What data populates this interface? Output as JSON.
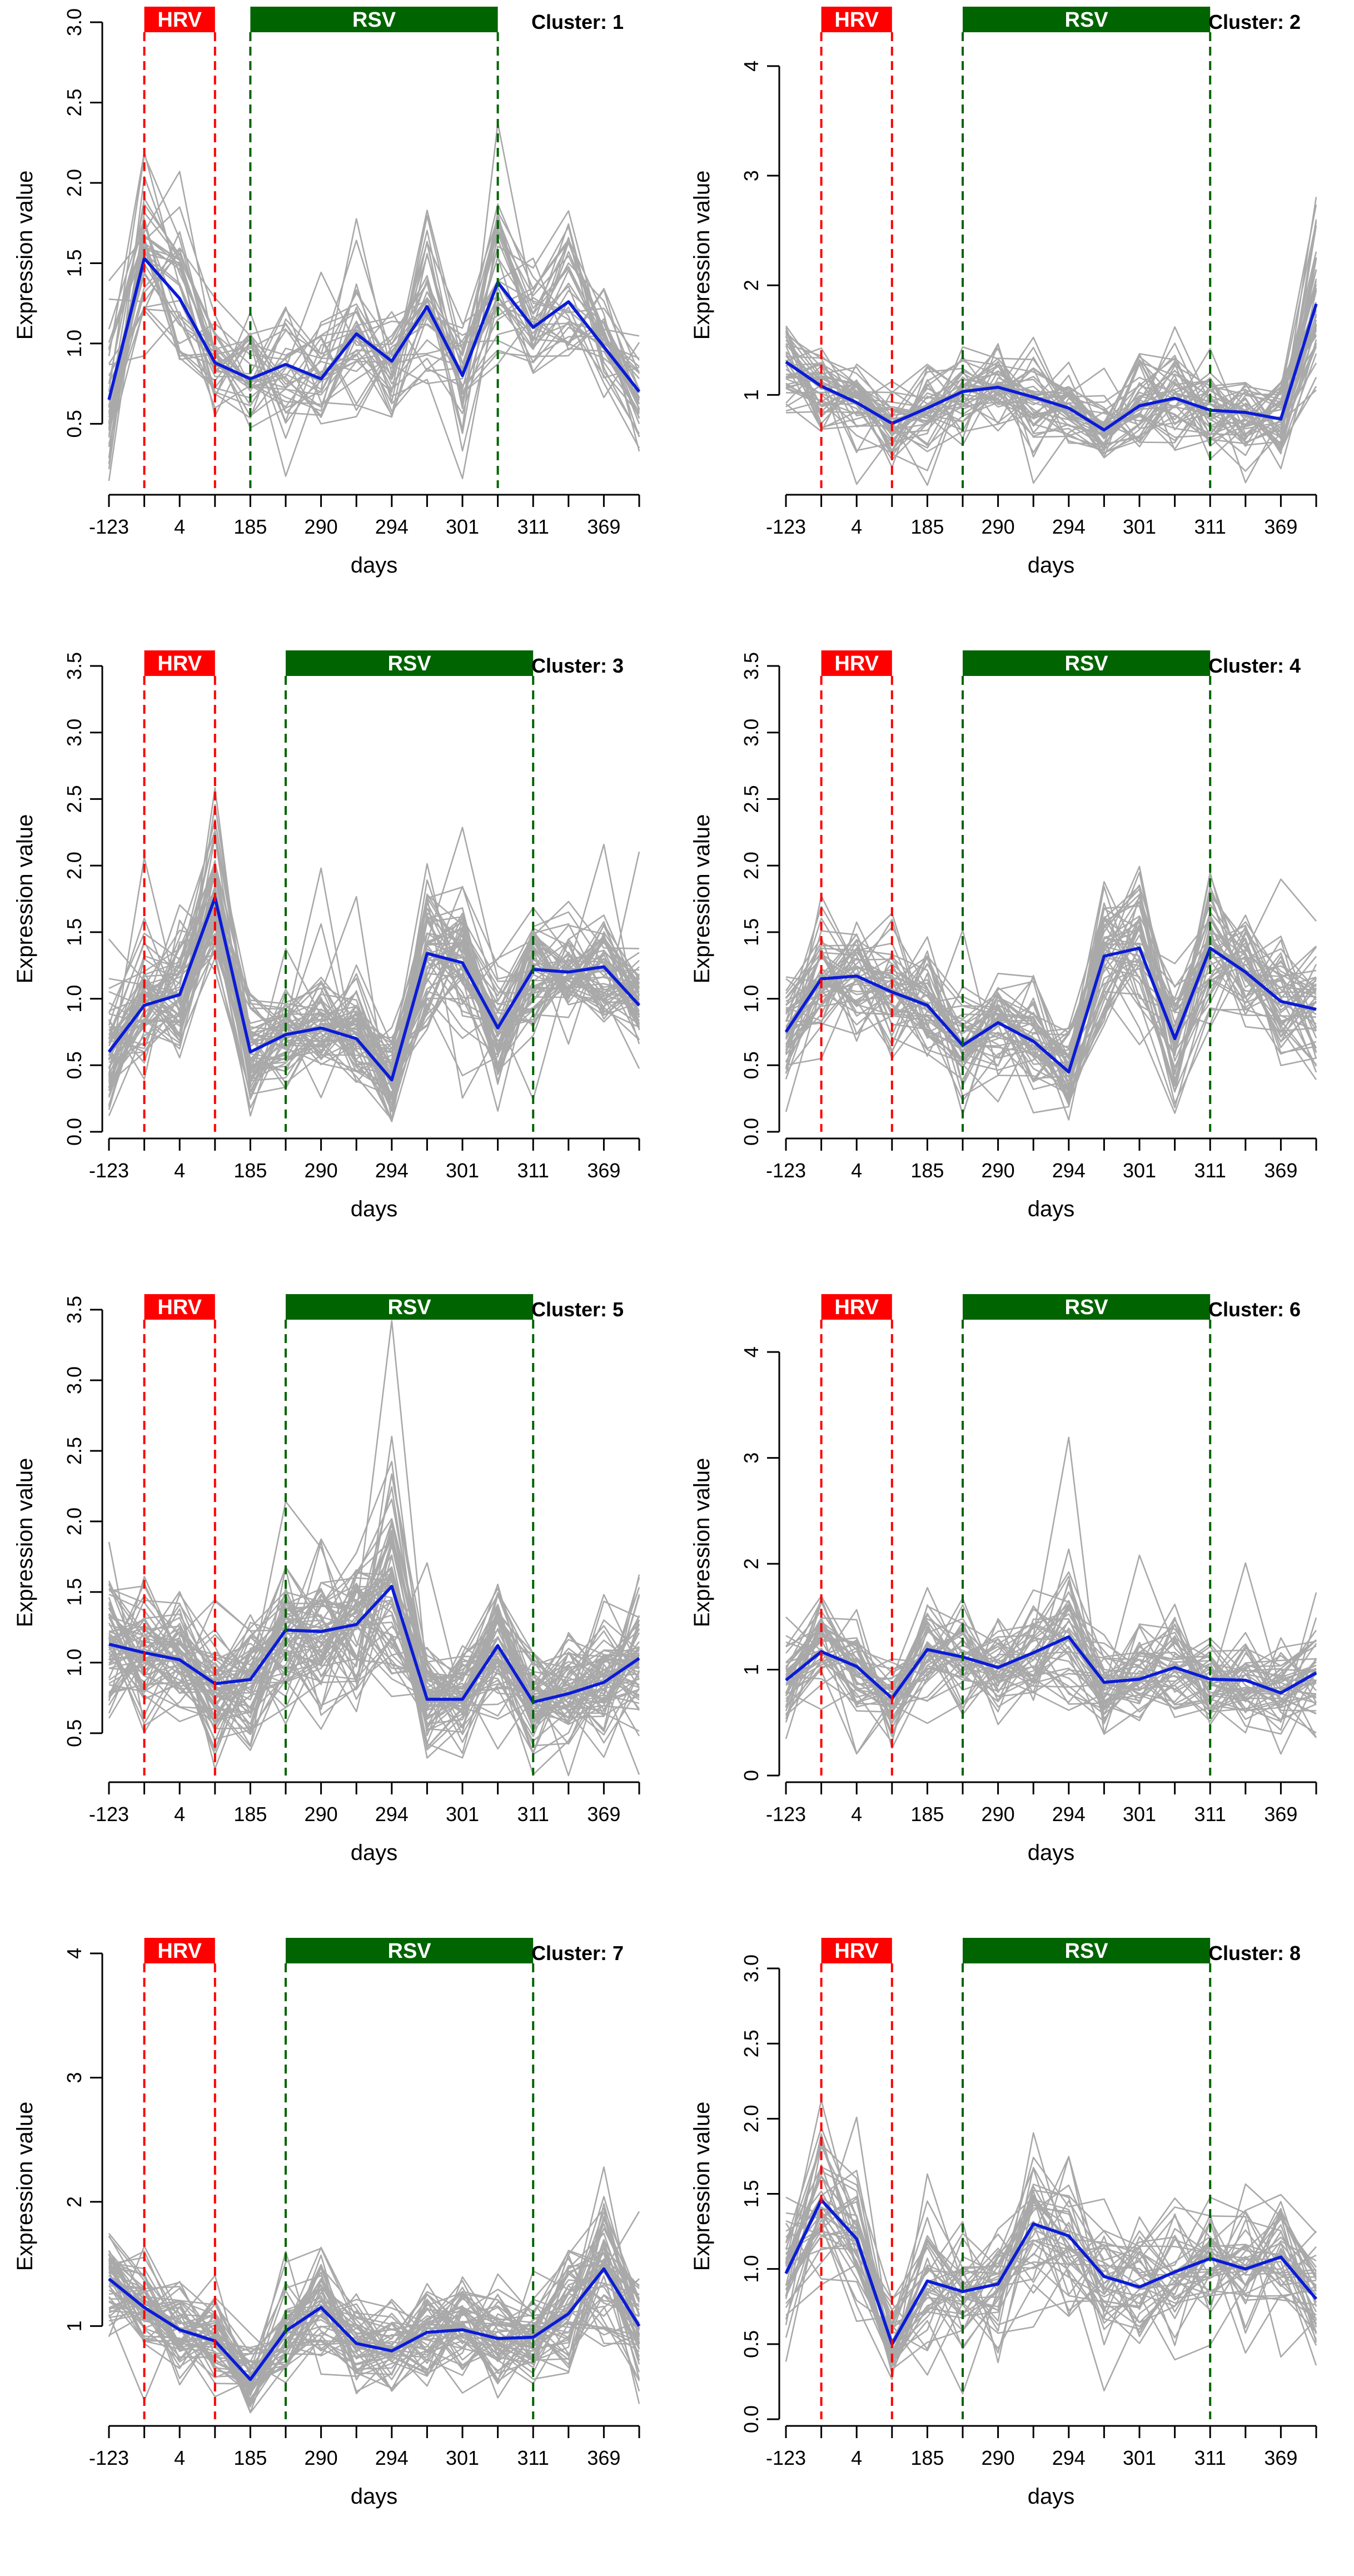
{
  "colors": {
    "background": "#ffffff",
    "mean_line": "#0a1bd6",
    "gene_lines": "#a9a9a9",
    "hrv": "#ff0000",
    "rsv": "#006400",
    "axis": "#000000"
  },
  "chart_data": [
    {
      "type": "line",
      "cluster_label": "Cluster: 1",
      "title": "",
      "xlabel": "days",
      "ylabel": "Expression value",
      "xtick_labels": [
        "-123",
        "4",
        "185",
        "290",
        "294",
        "301",
        "311",
        "369"
      ],
      "ylim": [
        0.1,
        3.0
      ],
      "yticks": [
        0.5,
        1.0,
        1.5,
        2.0,
        2.5,
        3.0
      ],
      "yticklabels": [
        "0.5",
        "1.0",
        "1.5",
        "2.0",
        "2.5",
        "3.0"
      ],
      "x": [
        1,
        2,
        3,
        4,
        5,
        6,
        7,
        8,
        9,
        10,
        11,
        12,
        13,
        14,
        15,
        16
      ],
      "hrv_band": {
        "label": "HRV",
        "from": 2,
        "to": 4
      },
      "rsv_band": {
        "label": "RSV",
        "from": 5,
        "to": 12
      },
      "n_gene_lines": 35,
      "series": [
        {
          "name": "cluster mean",
          "values": [
            0.65,
            1.53,
            1.28,
            0.88,
            0.78,
            0.87,
            0.78,
            1.06,
            0.89,
            1.23,
            0.8,
            1.38,
            1.1,
            1.26,
            0.98,
            0.7
          ]
        }
      ],
      "gene_spread": [
        0.28,
        0.4,
        0.3,
        0.22,
        0.22,
        0.22,
        0.25,
        0.32,
        0.28,
        0.35,
        0.28,
        0.35,
        0.25,
        0.3,
        0.22,
        0.28
      ]
    },
    {
      "type": "line",
      "cluster_label": "Cluster: 2",
      "title": "",
      "xlabel": "days",
      "ylabel": "Expression value",
      "xtick_labels": [
        "-123",
        "4",
        "185",
        "290",
        "294",
        "301",
        "311",
        "369"
      ],
      "ylim": [
        0.15,
        4.4
      ],
      "yticks": [
        1,
        2,
        3,
        4
      ],
      "yticklabels": [
        "1",
        "2",
        "3",
        "4"
      ],
      "x": [
        1,
        2,
        3,
        4,
        5,
        6,
        7,
        8,
        9,
        10,
        11,
        12,
        13,
        14,
        15,
        16
      ],
      "hrv_band": {
        "label": "HRV",
        "from": 2,
        "to": 4
      },
      "rsv_band": {
        "label": "RSV",
        "from": 6,
        "to": 13
      },
      "n_gene_lines": 45,
      "series": [
        {
          "name": "cluster mean",
          "values": [
            1.3,
            1.08,
            0.93,
            0.74,
            0.88,
            1.03,
            1.07,
            0.98,
            0.88,
            0.68,
            0.9,
            0.97,
            0.86,
            0.84,
            0.78,
            1.83
          ]
        }
      ],
      "gene_spread": [
        0.28,
        0.3,
        0.25,
        0.22,
        0.25,
        0.25,
        0.28,
        0.28,
        0.25,
        0.22,
        0.25,
        0.28,
        0.25,
        0.22,
        0.25,
        0.55
      ]
    },
    {
      "type": "line",
      "cluster_label": "Cluster: 3",
      "title": "",
      "xlabel": "days",
      "ylabel": "Expression value",
      "xtick_labels": [
        "-123",
        "4",
        "185",
        "290",
        "294",
        "301",
        "311",
        "369"
      ],
      "ylim": [
        0.0,
        3.5
      ],
      "yticks": [
        0.0,
        0.5,
        1.0,
        1.5,
        2.0,
        2.5,
        3.0,
        3.5
      ],
      "yticklabels": [
        "0.0",
        "0.5",
        "1.0",
        "1.5",
        "2.0",
        "2.5",
        "3.0",
        "3.5"
      ],
      "x": [
        1,
        2,
        3,
        4,
        5,
        6,
        7,
        8,
        9,
        10,
        11,
        12,
        13,
        14,
        15,
        16
      ],
      "hrv_band": {
        "label": "HRV",
        "from": 2,
        "to": 4
      },
      "rsv_band": {
        "label": "RSV",
        "from": 6,
        "to": 13
      },
      "n_gene_lines": 60,
      "series": [
        {
          "name": "cluster mean",
          "values": [
            0.6,
            0.95,
            1.03,
            1.76,
            0.6,
            0.73,
            0.78,
            0.7,
            0.39,
            1.34,
            1.27,
            0.78,
            1.22,
            1.2,
            1.24,
            0.95
          ]
        }
      ],
      "gene_spread": [
        0.3,
        0.32,
        0.3,
        0.45,
        0.25,
        0.25,
        0.28,
        0.28,
        0.22,
        0.35,
        0.32,
        0.3,
        0.32,
        0.3,
        0.3,
        0.28
      ]
    },
    {
      "type": "line",
      "cluster_label": "Cluster: 4",
      "title": "",
      "xlabel": "days",
      "ylabel": "Expression value",
      "xtick_labels": [
        "-123",
        "4",
        "185",
        "290",
        "294",
        "301",
        "311",
        "369"
      ],
      "ylim": [
        0.0,
        3.5
      ],
      "yticks": [
        0.0,
        0.5,
        1.0,
        1.5,
        2.0,
        2.5,
        3.0,
        3.5
      ],
      "yticklabels": [
        "0.0",
        "0.5",
        "1.0",
        "1.5",
        "2.0",
        "2.5",
        "3.0",
        "3.5"
      ],
      "x": [
        1,
        2,
        3,
        4,
        5,
        6,
        7,
        8,
        9,
        10,
        11,
        12,
        13,
        14,
        15,
        16
      ],
      "hrv_band": {
        "label": "HRV",
        "from": 2,
        "to": 4
      },
      "rsv_band": {
        "label": "RSV",
        "from": 6,
        "to": 13
      },
      "n_gene_lines": 50,
      "series": [
        {
          "name": "cluster mean",
          "values": [
            0.75,
            1.15,
            1.17,
            1.05,
            0.95,
            0.65,
            0.82,
            0.68,
            0.45,
            1.32,
            1.38,
            0.7,
            1.38,
            1.2,
            0.98,
            0.92
          ]
        }
      ],
      "gene_spread": [
        0.28,
        0.32,
        0.3,
        0.28,
        0.28,
        0.25,
        0.28,
        0.25,
        0.22,
        0.35,
        0.35,
        0.3,
        0.35,
        0.3,
        0.28,
        0.28
      ]
    },
    {
      "type": "line",
      "cluster_label": "Cluster: 5",
      "title": "",
      "xlabel": "days",
      "ylabel": "Expression value",
      "xtick_labels": [
        "-123",
        "4",
        "185",
        "290",
        "294",
        "301",
        "311",
        "369"
      ],
      "ylim": [
        0.2,
        3.5
      ],
      "yticks": [
        0.5,
        1.0,
        1.5,
        2.0,
        2.5,
        3.0,
        3.5
      ],
      "yticklabels": [
        "0.5",
        "1.0",
        "1.5",
        "2.0",
        "2.5",
        "3.0",
        "3.5"
      ],
      "x": [
        1,
        2,
        3,
        4,
        5,
        6,
        7,
        8,
        9,
        10,
        11,
        12,
        13,
        14,
        15,
        16
      ],
      "hrv_band": {
        "label": "HRV",
        "from": 2,
        "to": 4
      },
      "rsv_band": {
        "label": "RSV",
        "from": 6,
        "to": 13
      },
      "n_gene_lines": 65,
      "series": [
        {
          "name": "cluster mean",
          "values": [
            1.13,
            1.07,
            1.02,
            0.85,
            0.88,
            1.23,
            1.22,
            1.27,
            1.54,
            0.74,
            0.74,
            1.12,
            0.72,
            0.78,
            0.86,
            1.03
          ]
        }
      ],
      "gene_spread": [
        0.35,
        0.3,
        0.28,
        0.28,
        0.28,
        0.35,
        0.38,
        0.4,
        0.5,
        0.25,
        0.25,
        0.3,
        0.25,
        0.25,
        0.28,
        0.32
      ]
    },
    {
      "type": "line",
      "cluster_label": "Cluster: 6",
      "title": "",
      "xlabel": "days",
      "ylabel": "Expression value",
      "xtick_labels": [
        "-123",
        "4",
        "185",
        "290",
        "294",
        "301",
        "311",
        "369"
      ],
      "ylim": [
        0.0,
        4.4
      ],
      "yticks": [
        0,
        1,
        2,
        3,
        4
      ],
      "yticklabels": [
        "0",
        "1",
        "2",
        "3",
        "4"
      ],
      "x": [
        1,
        2,
        3,
        4,
        5,
        6,
        7,
        8,
        9,
        10,
        11,
        12,
        13,
        14,
        15,
        16
      ],
      "hrv_band": {
        "label": "HRV",
        "from": 2,
        "to": 4
      },
      "rsv_band": {
        "label": "RSV",
        "from": 6,
        "to": 13
      },
      "n_gene_lines": 45,
      "series": [
        {
          "name": "cluster mean",
          "values": [
            0.9,
            1.17,
            1.03,
            0.73,
            1.19,
            1.12,
            1.02,
            1.16,
            1.31,
            0.88,
            0.91,
            1.02,
            0.91,
            0.9,
            0.78,
            0.97
          ]
        }
      ],
      "gene_spread": [
        0.3,
        0.32,
        0.28,
        0.25,
        0.35,
        0.32,
        0.3,
        0.35,
        0.45,
        0.28,
        0.28,
        0.3,
        0.28,
        0.28,
        0.3,
        0.35
      ]
    },
    {
      "type": "line",
      "cluster_label": "Cluster: 7",
      "title": "",
      "xlabel": "days",
      "ylabel": "Expression value",
      "xtick_labels": [
        "-123",
        "4",
        "185",
        "290",
        "294",
        "301",
        "311",
        "369"
      ],
      "ylim": [
        0.25,
        4.0
      ],
      "yticks": [
        1,
        2,
        3,
        4
      ],
      "yticklabels": [
        "1",
        "2",
        "3",
        "4"
      ],
      "x": [
        1,
        2,
        3,
        4,
        5,
        6,
        7,
        8,
        9,
        10,
        11,
        12,
        13,
        14,
        15,
        16
      ],
      "hrv_band": {
        "label": "HRV",
        "from": 2,
        "to": 4
      },
      "rsv_band": {
        "label": "RSV",
        "from": 6,
        "to": 13
      },
      "n_gene_lines": 55,
      "series": [
        {
          "name": "cluster mean",
          "values": [
            1.38,
            1.15,
            0.97,
            0.88,
            0.57,
            0.96,
            1.15,
            0.86,
            0.8,
            0.95,
            0.97,
            0.9,
            0.91,
            1.1,
            1.46,
            1.0
          ]
        }
      ],
      "gene_spread": [
        0.28,
        0.25,
        0.25,
        0.22,
        0.2,
        0.25,
        0.3,
        0.25,
        0.25,
        0.25,
        0.25,
        0.25,
        0.25,
        0.3,
        0.38,
        0.28
      ]
    },
    {
      "type": "line",
      "cluster_label": "Cluster: 8",
      "title": "",
      "xlabel": "days",
      "ylabel": "Expression value",
      "xtick_labels": [
        "-123",
        "4",
        "185",
        "290",
        "294",
        "301",
        "311",
        "369"
      ],
      "ylim": [
        0.0,
        3.1
      ],
      "yticks": [
        0.0,
        0.5,
        1.0,
        1.5,
        2.0,
        2.5,
        3.0
      ],
      "yticklabels": [
        "0.0",
        "0.5",
        "1.0",
        "1.5",
        "2.0",
        "2.5",
        "3.0"
      ],
      "x": [
        1,
        2,
        3,
        4,
        5,
        6,
        7,
        8,
        9,
        10,
        11,
        12,
        13,
        14,
        15,
        16
      ],
      "hrv_band": {
        "label": "HRV",
        "from": 2,
        "to": 4
      },
      "rsv_band": {
        "label": "RSV",
        "from": 6,
        "to": 13
      },
      "n_gene_lines": 40,
      "series": [
        {
          "name": "cluster mean",
          "values": [
            0.97,
            1.46,
            1.2,
            0.5,
            0.92,
            0.85,
            0.9,
            1.3,
            1.22,
            0.95,
            0.88,
            0.98,
            1.07,
            1.0,
            1.08,
            0.8
          ]
        }
      ],
      "gene_spread": [
        0.3,
        0.4,
        0.32,
        0.2,
        0.28,
        0.25,
        0.28,
        0.38,
        0.35,
        0.28,
        0.28,
        0.28,
        0.3,
        0.28,
        0.28,
        0.28
      ]
    }
  ]
}
